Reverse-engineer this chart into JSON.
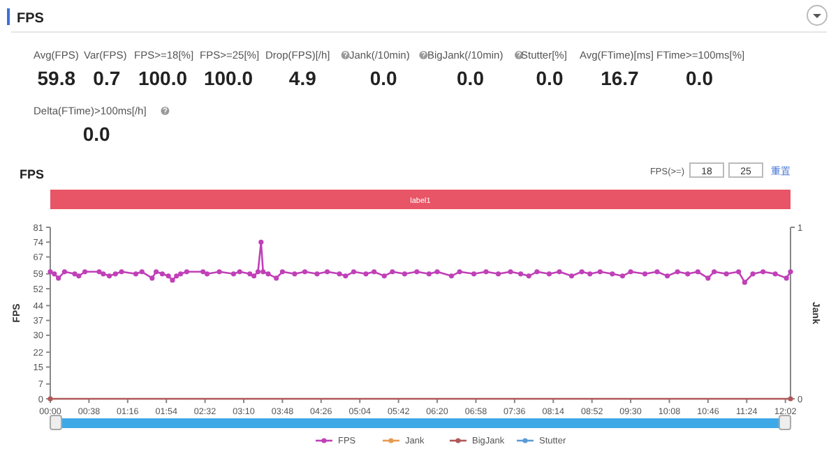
{
  "chart_data": [
    {
      "type": "other",
      "title": "FPS",
      "categories": [
        "Avg(FPS)",
        "Var(FPS)",
        "FPS>=18[%]",
        "FPS>=25[%]",
        "Drop(FPS)[/h]",
        "Jank(/10min)",
        "BigJank(/10min)",
        "Stutter[%]",
        "Avg(FTime)[ms]",
        "FTime>=100ms[%]",
        "Delta(FTime)>100ms[/h]"
      ],
      "value_labels": [
        "59.8",
        "0.7",
        "100.0",
        "100.0",
        "4.9",
        "0.0",
        "0.0",
        "0.0",
        "16.7",
        "0.0",
        "0.0"
      ]
    },
    {
      "type": "line",
      "title": "FPS",
      "ylabel": "FPS",
      "y2label": "Jank",
      "annotations": [
        "FPS(>=)",
        "18",
        "25",
        "重置",
        "label1"
      ],
      "xlim": [
        0,
        727
      ],
      "xticks": [
        {
          "value": 0,
          "label": "00:00"
        },
        {
          "value": 38,
          "label": "00:38"
        },
        {
          "value": 76,
          "label": "01:16"
        },
        {
          "value": 114,
          "label": "01:54"
        },
        {
          "value": 152,
          "label": "02:32"
        },
        {
          "value": 190,
          "label": "03:10"
        },
        {
          "value": 228,
          "label": "03:48"
        },
        {
          "value": 266,
          "label": "04:26"
        },
        {
          "value": 304,
          "label": "05:04"
        },
        {
          "value": 342,
          "label": "05:42"
        },
        {
          "value": 380,
          "label": "06:20"
        },
        {
          "value": 418,
          "label": "06:58"
        },
        {
          "value": 456,
          "label": "07:36"
        },
        {
          "value": 494,
          "label": "08:14"
        },
        {
          "value": 532,
          "label": "08:52"
        },
        {
          "value": 570,
          "label": "09:30"
        },
        {
          "value": 608,
          "label": "10:08"
        },
        {
          "value": 646,
          "label": "10:46"
        },
        {
          "value": 684,
          "label": "11:24"
        },
        {
          "value": 722,
          "label": "12:02"
        }
      ],
      "ylim": [
        0,
        81
      ],
      "yticks": [
        0,
        7,
        15,
        22,
        30,
        37,
        44,
        52,
        59,
        67,
        74,
        81
      ],
      "y2lim": [
        0,
        1
      ],
      "y2ticks": [
        0,
        1
      ],
      "legend": "bottom",
      "marker": "circle",
      "line_style": "solid",
      "grid": false,
      "series": [
        {
          "name": "FPS",
          "color": "#c040b8",
          "x": [
            0,
            4,
            8,
            14,
            24,
            28,
            34,
            48,
            52,
            58,
            64,
            70,
            84,
            90,
            100,
            104,
            110,
            116,
            120,
            124,
            128,
            134,
            150,
            154,
            166,
            180,
            186,
            196,
            200,
            204,
            207,
            209,
            214,
            222,
            228,
            240,
            250,
            262,
            272,
            284,
            290,
            298,
            310,
            318,
            328,
            336,
            348,
            360,
            372,
            380,
            394,
            402,
            416,
            428,
            440,
            452,
            462,
            470,
            478,
            490,
            500,
            512,
            522,
            530,
            540,
            552,
            562,
            570,
            584,
            596,
            606,
            616,
            626,
            636,
            646,
            652,
            664,
            676,
            682,
            690,
            700,
            712,
            723,
            727
          ],
          "values": [
            60,
            59,
            57,
            60,
            59,
            58,
            60,
            60,
            59,
            58,
            59,
            60,
            59,
            60,
            57,
            60,
            59,
            58,
            56,
            58,
            59,
            60,
            60,
            59,
            60,
            59,
            60,
            59,
            58,
            60,
            74,
            60,
            59,
            57,
            60,
            59,
            60,
            59,
            60,
            59,
            58,
            60,
            59,
            60,
            58,
            60,
            59,
            60,
            59,
            60,
            58,
            60,
            59,
            60,
            59,
            60,
            59,
            58,
            60,
            59,
            60,
            58,
            60,
            59,
            60,
            59,
            58,
            60,
            59,
            60,
            58,
            60,
            59,
            60,
            57,
            60,
            59,
            60,
            55,
            59,
            60,
            59,
            57,
            60
          ]
        },
        {
          "name": "Jank",
          "color": "#e89a50",
          "values": [
            null
          ]
        },
        {
          "name": "BigJank",
          "color": "#b05858",
          "x": [
            0,
            727
          ],
          "values": [
            0,
            0
          ]
        },
        {
          "name": "Stutter",
          "color": "#5b9bd5",
          "values": [
            null
          ]
        }
      ]
    }
  ]
}
